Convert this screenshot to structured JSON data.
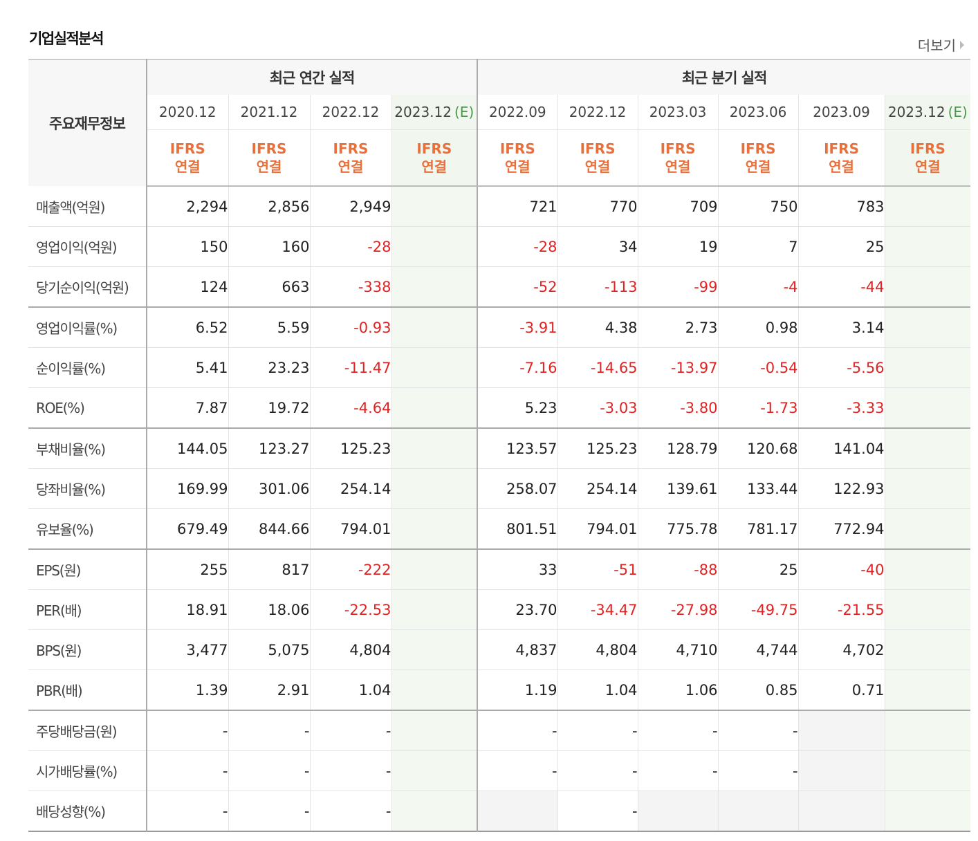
{
  "header": {
    "title": "기업실적분석",
    "more_label": "더보기"
  },
  "columns": {
    "row_header": "주요재무정보",
    "annual_group": "최근 연간 실적",
    "quarter_group": "최근 분기 실적",
    "annual_periods": [
      "2020.12",
      "2021.12",
      "2022.12",
      "2023.12"
    ],
    "quarter_periods": [
      "2022.09",
      "2022.12",
      "2023.03",
      "2023.06",
      "2023.09",
      "2023.12"
    ],
    "estimate_mark": "(E)",
    "basis_line1": "IFRS",
    "basis_line2": "연결"
  },
  "rows": [
    {
      "label": "매출액(억원)",
      "values": [
        "2,294",
        "2,856",
        "2,949",
        "",
        "721",
        "770",
        "709",
        "750",
        "783",
        ""
      ]
    },
    {
      "label": "영업이익(억원)",
      "values": [
        "150",
        "160",
        "-28",
        "",
        "-28",
        "34",
        "19",
        "7",
        "25",
        ""
      ]
    },
    {
      "label": "당기순이익(억원)",
      "values": [
        "124",
        "663",
        "-338",
        "",
        "-52",
        "-113",
        "-99",
        "-4",
        "-44",
        ""
      ]
    },
    {
      "label": "영업이익률(%)",
      "values": [
        "6.52",
        "5.59",
        "-0.93",
        "",
        "-3.91",
        "4.38",
        "2.73",
        "0.98",
        "3.14",
        ""
      ]
    },
    {
      "label": "순이익률(%)",
      "values": [
        "5.41",
        "23.23",
        "-11.47",
        "",
        "-7.16",
        "-14.65",
        "-13.97",
        "-0.54",
        "-5.56",
        ""
      ]
    },
    {
      "label": "ROE(%)",
      "values": [
        "7.87",
        "19.72",
        "-4.64",
        "",
        "5.23",
        "-3.03",
        "-3.80",
        "-1.73",
        "-3.33",
        ""
      ]
    },
    {
      "label": "부채비율(%)",
      "values": [
        "144.05",
        "123.27",
        "125.23",
        "",
        "123.57",
        "125.23",
        "128.79",
        "120.68",
        "141.04",
        ""
      ]
    },
    {
      "label": "당좌비율(%)",
      "values": [
        "169.99",
        "301.06",
        "254.14",
        "",
        "258.07",
        "254.14",
        "139.61",
        "133.44",
        "122.93",
        ""
      ]
    },
    {
      "label": "유보율(%)",
      "values": [
        "679.49",
        "844.66",
        "794.01",
        "",
        "801.51",
        "794.01",
        "775.78",
        "781.17",
        "772.94",
        ""
      ]
    },
    {
      "label": "EPS(원)",
      "values": [
        "255",
        "817",
        "-222",
        "",
        "33",
        "-51",
        "-88",
        "25",
        "-40",
        ""
      ]
    },
    {
      "label": "PER(배)",
      "values": [
        "18.91",
        "18.06",
        "-22.53",
        "",
        "23.70",
        "-34.47",
        "-27.98",
        "-49.75",
        "-21.55",
        ""
      ]
    },
    {
      "label": "BPS(원)",
      "values": [
        "3,477",
        "5,075",
        "4,804",
        "",
        "4,837",
        "4,804",
        "4,710",
        "4,744",
        "4,702",
        ""
      ]
    },
    {
      "label": "PBR(배)",
      "values": [
        "1.39",
        "2.91",
        "1.04",
        "",
        "1.19",
        "1.04",
        "1.06",
        "0.85",
        "0.71",
        ""
      ]
    },
    {
      "label": "주당배당금(원)",
      "values": [
        "-",
        "-",
        "-",
        "",
        "-",
        "-",
        "-",
        "-",
        "",
        ""
      ]
    },
    {
      "label": "시가배당률(%)",
      "values": [
        "-",
        "-",
        "-",
        "",
        "-",
        "-",
        "-",
        "-",
        "",
        ""
      ]
    },
    {
      "label": "배당성향(%)",
      "values": [
        "-",
        "-",
        "-",
        "",
        "",
        "-",
        "",
        "",
        "",
        ""
      ]
    }
  ],
  "colors": {
    "negative": "#e02424",
    "basis": "#e8703a",
    "estimate_mark": "#4a9a4a",
    "estimate_bg": "#f3f8f0"
  }
}
